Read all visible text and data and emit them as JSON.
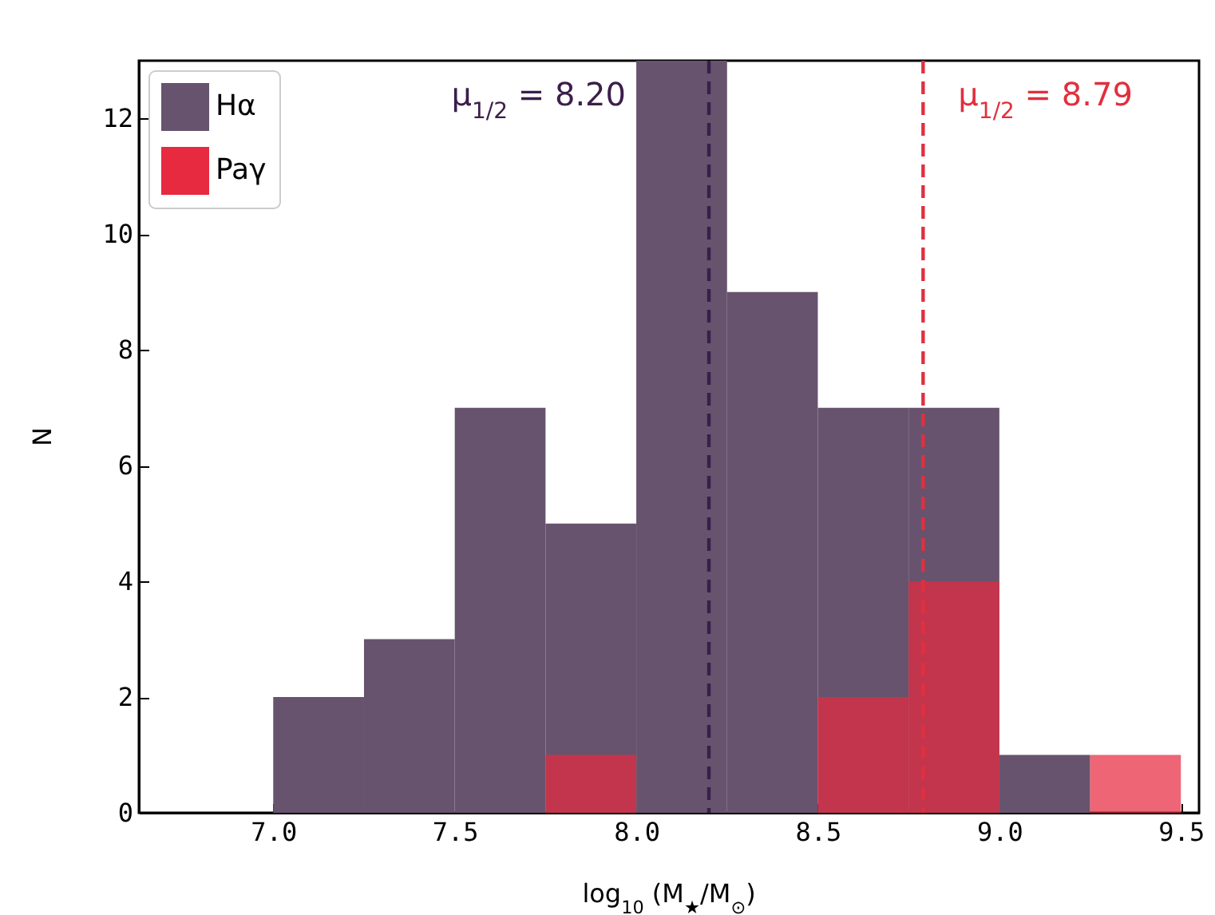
{
  "chart_data": {
    "type": "histogram",
    "xlabel": "log$_{10}$ (M$_{★}$/M$_{⊙}$)",
    "ylabel": "N",
    "bins": [
      7.0,
      7.25,
      7.5,
      7.75,
      8.0,
      8.25,
      8.5,
      8.75,
      9.0,
      9.25,
      9.5
    ],
    "series": [
      {
        "name": "Hα",
        "color": "#67536d",
        "values": [
          2,
          3,
          7,
          5,
          13,
          9,
          7,
          7,
          1,
          0
        ]
      },
      {
        "name": "Paγ",
        "color": "#e72a40",
        "values": [
          0,
          0,
          0,
          1,
          0,
          0,
          2,
          4,
          0,
          1
        ]
      }
    ],
    "xlim": [
      6.63,
      9.55
    ],
    "ylim": [
      0,
      13
    ],
    "xticks": [
      {
        "value": 7,
        "label": "7.0"
      },
      {
        "value": 7.5,
        "label": "7.5"
      },
      {
        "value": 8,
        "label": "8.0"
      },
      {
        "value": 8.5,
        "label": "8.5"
      },
      {
        "value": 9,
        "label": "9.0"
      },
      {
        "value": 9.5,
        "label": "9.5"
      }
    ],
    "yticks": [
      0,
      2,
      4,
      6,
      8,
      10,
      12
    ],
    "ref_lines": [
      {
        "axis": "x",
        "value": 8.2,
        "label": "μ$_{1/2}$ = 8.20",
        "color": "#3b1e4a",
        "line_style": "dashed"
      },
      {
        "axis": "x",
        "value": 8.79,
        "label": "μ$_{1/2}$ = 8.79",
        "color": "#e0303f",
        "line_style": "dashed"
      }
    ],
    "legend": "top left",
    "grid": false
  }
}
